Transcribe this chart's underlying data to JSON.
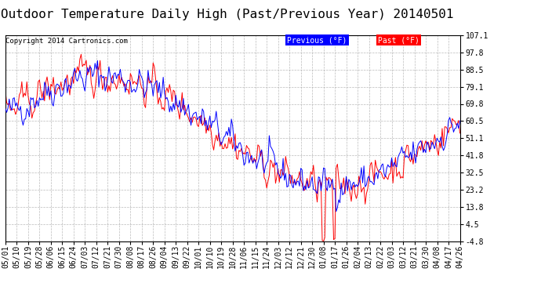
{
  "title": "Outdoor Temperature Daily High (Past/Previous Year) 20140501",
  "copyright": "Copyright 2014 Cartronics.com",
  "legend_labels": [
    "Previous (°F)",
    "Past (°F)"
  ],
  "legend_colors": [
    "#0000ff",
    "#ff0000"
  ],
  "yticks": [
    107.1,
    97.8,
    88.5,
    79.1,
    69.8,
    60.5,
    51.1,
    41.8,
    32.5,
    23.2,
    13.8,
    4.5,
    -4.8
  ],
  "ylim": [
    -4.8,
    107.1
  ],
  "background_color": "#ffffff",
  "plot_bg_color": "#ffffff",
  "grid_color": "#aaaaaa",
  "title_fontsize": 11.5,
  "tick_fontsize": 7,
  "copyright_fontsize": 6.5,
  "line_width": 0.7,
  "x_dates": [
    "05/01",
    "05/10",
    "05/19",
    "05/28",
    "06/06",
    "06/15",
    "06/24",
    "07/03",
    "07/12",
    "07/21",
    "07/30",
    "08/08",
    "08/17",
    "08/26",
    "09/04",
    "09/13",
    "09/22",
    "10/01",
    "10/10",
    "10/19",
    "10/28",
    "11/06",
    "11/15",
    "11/24",
    "12/03",
    "12/12",
    "12/21",
    "12/30",
    "01/08",
    "01/17",
    "01/26",
    "02/04",
    "02/13",
    "02/22",
    "03/03",
    "03/12",
    "03/21",
    "03/30",
    "04/08",
    "04/17",
    "04/26"
  ]
}
